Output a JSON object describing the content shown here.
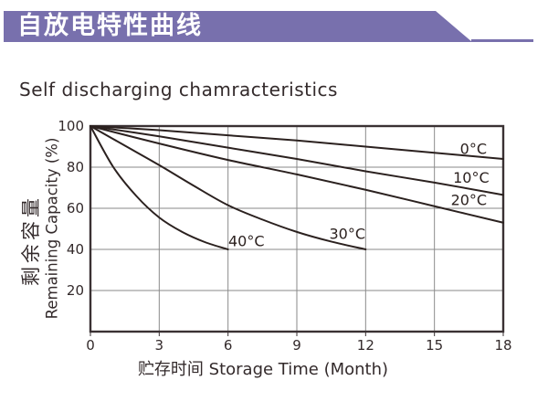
{
  "banner": {
    "title": "自放电特性曲线",
    "color": "#7870ad",
    "text_color": "#ffffff"
  },
  "page_title": "Self discharging chamracteristics",
  "chart_data": {
    "type": "line",
    "title": "Self discharging chamracteristics",
    "xlabel": "贮存时间 Storage Time (Month)",
    "ylabel_cn": "剩余容量",
    "ylabel_en": "Remaining Capacity (%)",
    "xlim": [
      0,
      18
    ],
    "ylim": [
      0,
      100
    ],
    "x_ticks": [
      "0",
      "3",
      "6",
      "9",
      "12",
      "15",
      "18"
    ],
    "x_tick_values": [
      0,
      3,
      6,
      9,
      12,
      15,
      18
    ],
    "y_ticks": [
      "100",
      "80",
      "60",
      "40",
      "20"
    ],
    "y_tick_values": [
      100,
      80,
      60,
      40,
      20
    ],
    "grid": true,
    "legend_position": "inline-labels",
    "line_color": "#2b211f",
    "grid_color": "#8a8a8a",
    "border_color": "#3a3133",
    "text_color": "#332a2b",
    "series": [
      {
        "name": "0°C",
        "points": [
          [
            0,
            100
          ],
          [
            3,
            98
          ],
          [
            6,
            95.5
          ],
          [
            9,
            93
          ],
          [
            12,
            90
          ],
          [
            15,
            87
          ],
          [
            18,
            84
          ]
        ],
        "label_pos": [
          16.7,
          89
        ]
      },
      {
        "name": "10°C",
        "points": [
          [
            0,
            100
          ],
          [
            3,
            95
          ],
          [
            6,
            89.5
          ],
          [
            9,
            84
          ],
          [
            12,
            78
          ],
          [
            15,
            72.5
          ],
          [
            18,
            66.5
          ]
        ],
        "label_pos": [
          16.6,
          75
        ]
      },
      {
        "name": "20°C",
        "points": [
          [
            0,
            100
          ],
          [
            3,
            91.5
          ],
          [
            6,
            83.5
          ],
          [
            9,
            76.5
          ],
          [
            12,
            69
          ],
          [
            15,
            61
          ],
          [
            18,
            53
          ]
        ],
        "label_pos": [
          16.5,
          64
        ]
      },
      {
        "name": "30°C",
        "points": [
          [
            0,
            100
          ],
          [
            1.5,
            90.5
          ],
          [
            3,
            81
          ],
          [
            4.5,
            71
          ],
          [
            6,
            61.5
          ],
          [
            7.5,
            54.5
          ],
          [
            9,
            48.5
          ],
          [
            10.5,
            43.8
          ],
          [
            12,
            40
          ]
        ],
        "label_pos": [
          11.2,
          47.5
        ]
      },
      {
        "name": "40°C",
        "points": [
          [
            0,
            100
          ],
          [
            1,
            80
          ],
          [
            2,
            66
          ],
          [
            3,
            55.5
          ],
          [
            4,
            48.5
          ],
          [
            5,
            43.5
          ],
          [
            6,
            40
          ]
        ],
        "label_pos": [
          6.8,
          44
        ]
      }
    ]
  }
}
